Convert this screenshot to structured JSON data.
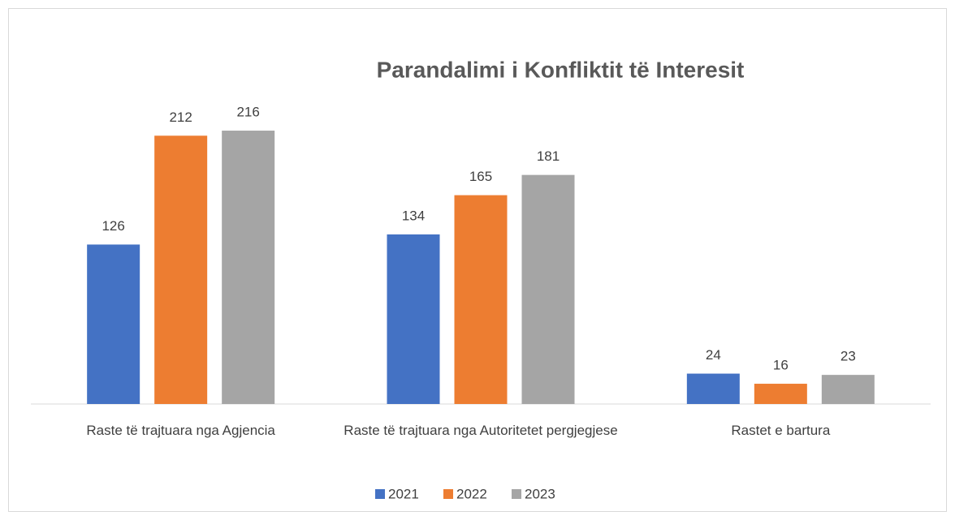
{
  "chart_data": {
    "type": "bar",
    "title": "Parandalimi i Konfliktit të Interesit",
    "categories": [
      "Raste të trajtuara nga Agjencia",
      "Raste të trajtuara nga Autoritetet pergjegjese",
      "Rastet e bartura"
    ],
    "series": [
      {
        "name": "2021",
        "color": "#4472c4",
        "values": [
          126,
          134,
          24
        ]
      },
      {
        "name": "2022",
        "color": "#ed7d31",
        "values": [
          212,
          165,
          16
        ]
      },
      {
        "name": "2023",
        "color": "#a5a5a5",
        "values": [
          216,
          181,
          23
        ]
      }
    ],
    "ylim": [
      0,
      250
    ],
    "legend": "bottom"
  }
}
